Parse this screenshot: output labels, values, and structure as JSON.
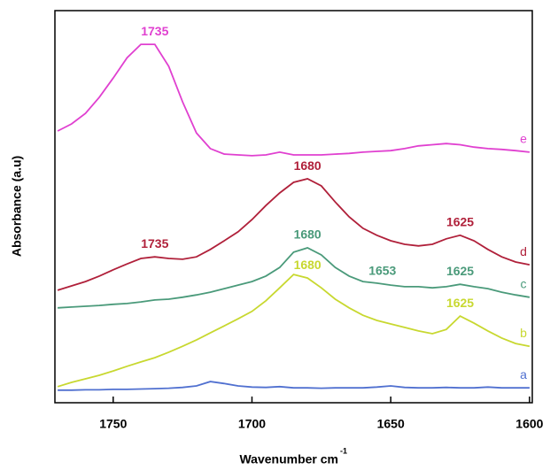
{
  "chart_data": {
    "type": "line",
    "ylabel": "Absorbance (a.u)",
    "xlabel": "Wavenumber cm",
    "xlabel_superscript": "-1",
    "xlim": [
      1771,
      1599
    ],
    "xticks": [
      1750,
      1700,
      1650,
      1600
    ],
    "ylim": [
      0,
      100
    ],
    "yticks": [],
    "x": [
      1770,
      1765,
      1760,
      1755,
      1750,
      1745,
      1740,
      1735,
      1730,
      1725,
      1720,
      1715,
      1710,
      1705,
      1700,
      1695,
      1690,
      1685,
      1680,
      1675,
      1670,
      1665,
      1660,
      1655,
      1650,
      1645,
      1640,
      1635,
      1630,
      1625,
      1620,
      1615,
      1610,
      1605,
      1600
    ],
    "series": [
      {
        "name": "a",
        "color": "#5070d0",
        "values": [
          3.2,
          3.2,
          3.3,
          3.3,
          3.4,
          3.4,
          3.5,
          3.6,
          3.7,
          3.9,
          4.3,
          5.4,
          4.9,
          4.3,
          4.0,
          3.9,
          4.1,
          3.8,
          3.8,
          3.7,
          3.8,
          3.8,
          3.8,
          4.0,
          4.3,
          3.9,
          3.8,
          3.8,
          3.9,
          3.8,
          3.8,
          4.0,
          3.8,
          3.8,
          3.8
        ]
      },
      {
        "name": "b",
        "color": "#c8d830",
        "values": [
          4.1,
          5.2,
          6.1,
          7.0,
          8.1,
          9.3,
          10.4,
          11.5,
          12.9,
          14.4,
          16.0,
          17.8,
          19.6,
          21.4,
          23.3,
          26.0,
          29.3,
          32.7,
          31.8,
          29.3,
          26.4,
          24.2,
          22.3,
          21.0,
          20.1,
          19.2,
          18.3,
          17.6,
          18.7,
          22.1,
          20.3,
          18.3,
          16.5,
          15.1,
          14.4
        ]
      },
      {
        "name": "c",
        "color": "#4a9a7a",
        "values": [
          24.2,
          24.4,
          24.6,
          24.8,
          25.1,
          25.3,
          25.7,
          26.2,
          26.4,
          26.9,
          27.5,
          28.2,
          29.1,
          30.0,
          30.9,
          32.3,
          34.5,
          38.4,
          39.5,
          37.7,
          34.5,
          32.3,
          30.9,
          30.5,
          30.0,
          29.6,
          29.6,
          29.3,
          29.6,
          30.2,
          29.6,
          29.1,
          28.2,
          27.5,
          26.9
        ]
      },
      {
        "name": "d",
        "color": "#b0203a",
        "values": [
          28.7,
          29.8,
          30.9,
          32.3,
          33.9,
          35.4,
          36.8,
          37.2,
          36.8,
          36.6,
          37.2,
          39.1,
          41.3,
          43.6,
          46.7,
          50.3,
          53.5,
          56.2,
          57.1,
          55.3,
          51.2,
          47.4,
          44.5,
          42.7,
          41.3,
          40.4,
          40.0,
          40.4,
          41.8,
          42.7,
          41.3,
          39.1,
          37.2,
          35.9,
          35.2
        ]
      },
      {
        "name": "e",
        "color": "#e040d0",
        "values": [
          69.3,
          71.1,
          73.8,
          77.9,
          82.8,
          88.0,
          91.4,
          91.4,
          85.8,
          76.7,
          68.8,
          64.8,
          63.4,
          63.2,
          63.0,
          63.2,
          63.9,
          63.2,
          63.2,
          63.2,
          63.4,
          63.6,
          63.9,
          64.1,
          64.3,
          64.8,
          65.5,
          65.8,
          66.1,
          65.8,
          65.2,
          64.8,
          64.6,
          64.3,
          63.9
        ]
      }
    ],
    "annotations": [
      {
        "label": "1735",
        "x": 1735,
        "series": 4
      },
      {
        "label": "1680",
        "x": 1680,
        "series": 3
      },
      {
        "label": "1735",
        "x": 1735,
        "series": 3
      },
      {
        "label": "1625",
        "x": 1625,
        "series": 3
      },
      {
        "label": "1680",
        "x": 1680,
        "series": 2
      },
      {
        "label": "1653",
        "x": 1653,
        "series": 2
      },
      {
        "label": "1625",
        "x": 1625,
        "series": 2
      },
      {
        "label": "1680",
        "x": 1680,
        "series": 1
      },
      {
        "label": "1625",
        "x": 1625,
        "series": 1
      }
    ]
  }
}
